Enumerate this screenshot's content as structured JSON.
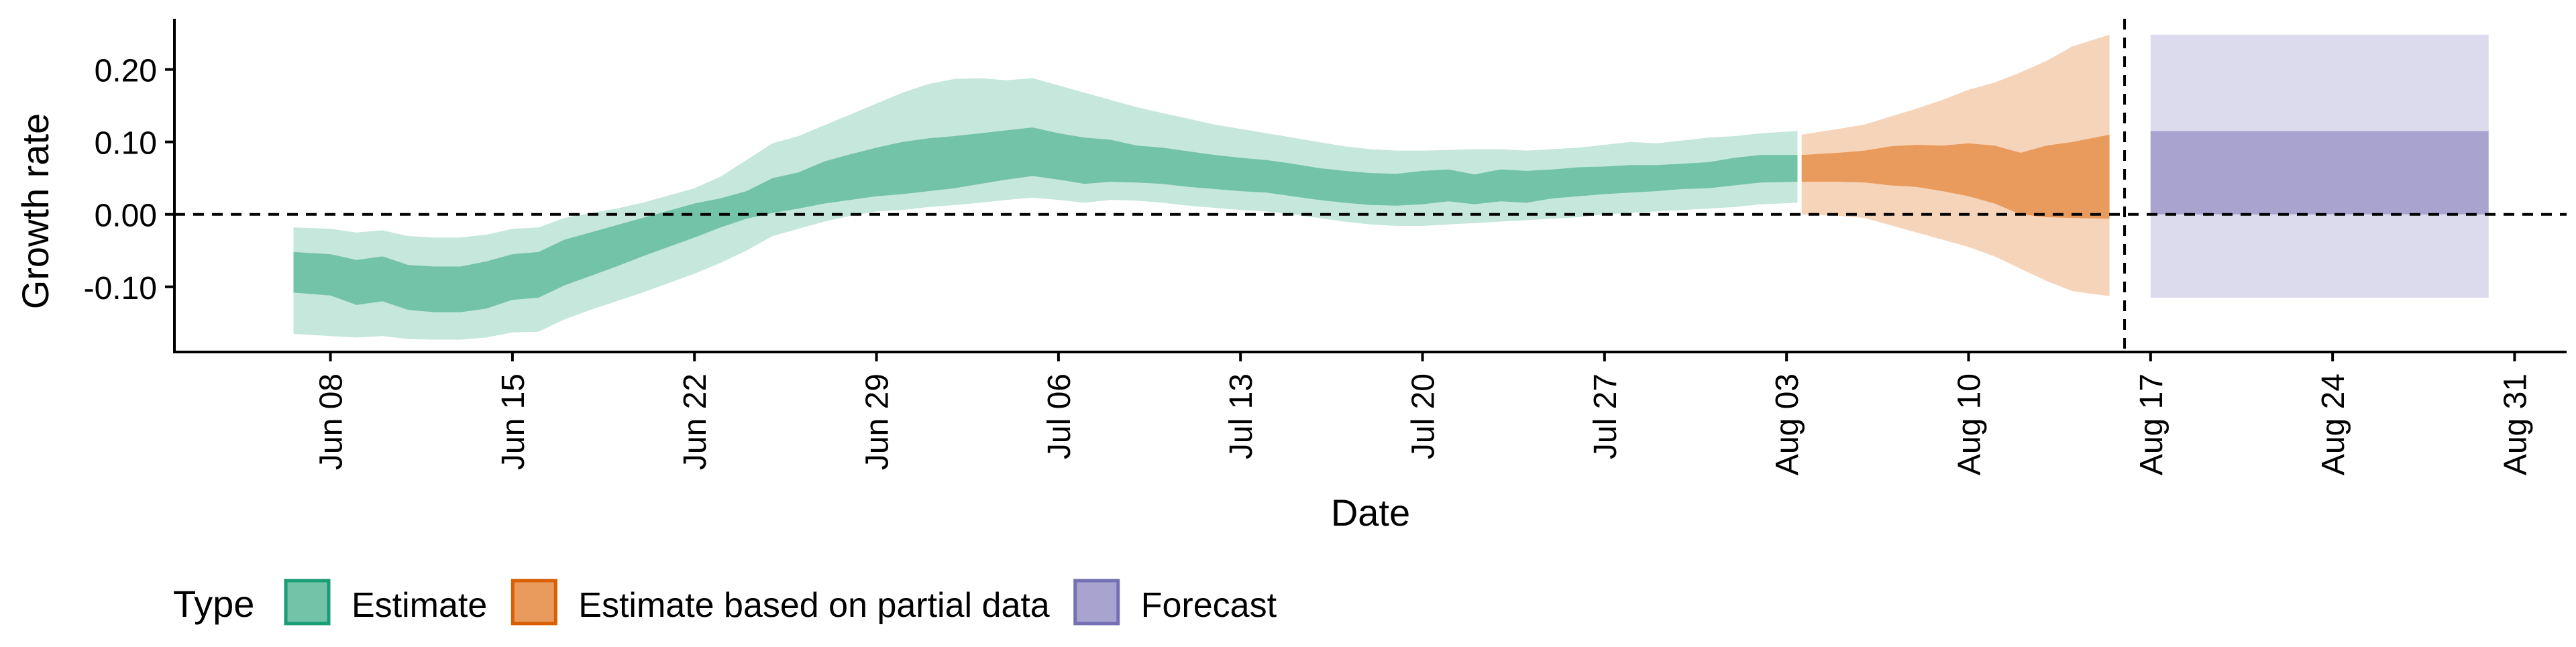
{
  "chart_data": {
    "type": "area",
    "title": "",
    "xlabel": "Date",
    "ylabel": "Growth rate",
    "x_ticks": [
      "2021-06-08",
      "2021-06-15",
      "2021-06-22",
      "2021-06-29",
      "2021-07-06",
      "2021-07-13",
      "2021-07-20",
      "2021-07-27",
      "2021-08-03",
      "2021-08-10",
      "2021-08-17",
      "2021-08-24",
      "2021-08-31"
    ],
    "x_tick_labels": [
      "Jun 08",
      "Jun 15",
      "Jun 22",
      "Jun 29",
      "Jul 06",
      "Jul 13",
      "Jul 20",
      "Jul 27",
      "Aug 03",
      "Aug 10",
      "Aug 17",
      "Aug 24",
      "Aug 31"
    ],
    "y_ticks": [
      -0.1,
      0.0,
      0.1,
      0.2
    ],
    "y_tick_labels": [
      "-0.10",
      "0.00",
      "0.10",
      "0.20"
    ],
    "xlim": [
      "2021-06-02",
      "2021-09-02"
    ],
    "ylim": [
      -0.19,
      0.27
    ],
    "grid": false,
    "reference_lines": {
      "horizontal_dashed_y": 0.0,
      "vertical_dashed_x": "2021-08-16"
    },
    "legend": {
      "title": "Type",
      "position": "bottom-left",
      "entries": [
        {
          "label": "Estimate",
          "fill": "#72c3a8",
          "stroke": "#1b9e77"
        },
        {
          "label": "Estimate based on partial data",
          "fill": "#e99b5e",
          "stroke": "#d95f02"
        },
        {
          "label": "Forecast",
          "fill": "#a9a4cf",
          "stroke": "#7570b3"
        }
      ]
    },
    "series": [
      {
        "name": "Estimate",
        "outer_fill": "#c6e7dc",
        "inner_fill": "#72c3a8",
        "points": [
          {
            "x": "2021-06-07",
            "outer_lo": -0.165,
            "inner_lo": -0.108,
            "inner_hi": -0.052,
            "outer_hi": -0.018
          },
          {
            "x": "2021-06-08",
            "outer_lo": -0.168,
            "inner_lo": -0.112,
            "inner_hi": -0.055,
            "outer_hi": -0.02
          },
          {
            "x": "2021-06-09",
            "outer_lo": -0.17,
            "inner_lo": -0.125,
            "inner_hi": -0.063,
            "outer_hi": -0.025
          },
          {
            "x": "2021-06-10",
            "outer_lo": -0.168,
            "inner_lo": -0.12,
            "inner_hi": -0.058,
            "outer_hi": -0.022
          },
          {
            "x": "2021-06-11",
            "outer_lo": -0.172,
            "inner_lo": -0.132,
            "inner_hi": -0.07,
            "outer_hi": -0.03
          },
          {
            "x": "2021-06-12",
            "outer_lo": -0.173,
            "inner_lo": -0.135,
            "inner_hi": -0.072,
            "outer_hi": -0.032
          },
          {
            "x": "2021-06-13",
            "outer_lo": -0.173,
            "inner_lo": -0.135,
            "inner_hi": -0.072,
            "outer_hi": -0.032
          },
          {
            "x": "2021-06-14",
            "outer_lo": -0.17,
            "inner_lo": -0.13,
            "inner_hi": -0.065,
            "outer_hi": -0.028
          },
          {
            "x": "2021-06-15",
            "outer_lo": -0.163,
            "inner_lo": -0.118,
            "inner_hi": -0.055,
            "outer_hi": -0.02
          },
          {
            "x": "2021-06-16",
            "outer_lo": -0.162,
            "inner_lo": -0.115,
            "inner_hi": -0.052,
            "outer_hi": -0.018
          },
          {
            "x": "2021-06-17",
            "outer_lo": -0.145,
            "inner_lo": -0.098,
            "inner_hi": -0.035,
            "outer_hi": -0.005
          },
          {
            "x": "2021-06-18",
            "outer_lo": -0.132,
            "inner_lo": -0.085,
            "inner_hi": -0.025,
            "outer_hi": 0.002
          },
          {
            "x": "2021-06-19",
            "outer_lo": -0.12,
            "inner_lo": -0.072,
            "inner_hi": -0.015,
            "outer_hi": 0.008
          },
          {
            "x": "2021-06-20",
            "outer_lo": -0.108,
            "inner_lo": -0.058,
            "inner_hi": -0.005,
            "outer_hi": 0.016
          },
          {
            "x": "2021-06-21",
            "outer_lo": -0.095,
            "inner_lo": -0.045,
            "inner_hi": 0.005,
            "outer_hi": 0.026
          },
          {
            "x": "2021-06-22",
            "outer_lo": -0.082,
            "inner_lo": -0.032,
            "inner_hi": 0.015,
            "outer_hi": 0.036
          },
          {
            "x": "2021-06-23",
            "outer_lo": -0.067,
            "inner_lo": -0.018,
            "inner_hi": 0.022,
            "outer_hi": 0.052
          },
          {
            "x": "2021-06-24",
            "outer_lo": -0.05,
            "inner_lo": -0.006,
            "inner_hi": 0.032,
            "outer_hi": 0.075
          },
          {
            "x": "2021-06-25",
            "outer_lo": -0.03,
            "inner_lo": 0.002,
            "inner_hi": 0.05,
            "outer_hi": 0.098
          },
          {
            "x": "2021-06-26",
            "outer_lo": -0.02,
            "inner_lo": 0.008,
            "inner_hi": 0.058,
            "outer_hi": 0.108
          },
          {
            "x": "2021-06-27",
            "outer_lo": -0.01,
            "inner_lo": 0.015,
            "inner_hi": 0.073,
            "outer_hi": 0.123
          },
          {
            "x": "2021-06-28",
            "outer_lo": -0.002,
            "inner_lo": 0.02,
            "inner_hi": 0.083,
            "outer_hi": 0.138
          },
          {
            "x": "2021-06-29",
            "outer_lo": 0.004,
            "inner_lo": 0.025,
            "inner_hi": 0.092,
            "outer_hi": 0.153
          },
          {
            "x": "2021-06-30",
            "outer_lo": 0.006,
            "inner_lo": 0.028,
            "inner_hi": 0.1,
            "outer_hi": 0.168
          },
          {
            "x": "2021-07-01",
            "outer_lo": 0.01,
            "inner_lo": 0.032,
            "inner_hi": 0.105,
            "outer_hi": 0.18
          },
          {
            "x": "2021-07-02",
            "outer_lo": 0.013,
            "inner_lo": 0.036,
            "inner_hi": 0.108,
            "outer_hi": 0.187
          },
          {
            "x": "2021-07-03",
            "outer_lo": 0.016,
            "inner_lo": 0.042,
            "inner_hi": 0.112,
            "outer_hi": 0.188
          },
          {
            "x": "2021-07-04",
            "outer_lo": 0.02,
            "inner_lo": 0.048,
            "inner_hi": 0.116,
            "outer_hi": 0.185
          },
          {
            "x": "2021-07-05",
            "outer_lo": 0.023,
            "inner_lo": 0.053,
            "inner_hi": 0.12,
            "outer_hi": 0.188
          },
          {
            "x": "2021-07-06",
            "outer_lo": 0.02,
            "inner_lo": 0.048,
            "inner_hi": 0.112,
            "outer_hi": 0.178
          },
          {
            "x": "2021-07-07",
            "outer_lo": 0.016,
            "inner_lo": 0.042,
            "inner_hi": 0.106,
            "outer_hi": 0.168
          },
          {
            "x": "2021-07-08",
            "outer_lo": 0.02,
            "inner_lo": 0.045,
            "inner_hi": 0.103,
            "outer_hi": 0.158
          },
          {
            "x": "2021-07-09",
            "outer_lo": 0.019,
            "inner_lo": 0.044,
            "inner_hi": 0.095,
            "outer_hi": 0.148
          },
          {
            "x": "2021-07-10",
            "outer_lo": 0.016,
            "inner_lo": 0.042,
            "inner_hi": 0.092,
            "outer_hi": 0.14
          },
          {
            "x": "2021-07-11",
            "outer_lo": 0.012,
            "inner_lo": 0.038,
            "inner_hi": 0.087,
            "outer_hi": 0.132
          },
          {
            "x": "2021-07-12",
            "outer_lo": 0.009,
            "inner_lo": 0.035,
            "inner_hi": 0.082,
            "outer_hi": 0.124
          },
          {
            "x": "2021-07-13",
            "outer_lo": 0.006,
            "inner_lo": 0.032,
            "inner_hi": 0.078,
            "outer_hi": 0.118
          },
          {
            "x": "2021-07-14",
            "outer_lo": 0.004,
            "inner_lo": 0.03,
            "inner_hi": 0.075,
            "outer_hi": 0.112
          },
          {
            "x": "2021-07-15",
            "outer_lo": 0.0,
            "inner_lo": 0.025,
            "inner_hi": 0.07,
            "outer_hi": 0.106
          },
          {
            "x": "2021-07-16",
            "outer_lo": -0.005,
            "inner_lo": 0.02,
            "inner_hi": 0.064,
            "outer_hi": 0.1
          },
          {
            "x": "2021-07-17",
            "outer_lo": -0.01,
            "inner_lo": 0.016,
            "inner_hi": 0.06,
            "outer_hi": 0.094
          },
          {
            "x": "2021-07-18",
            "outer_lo": -0.014,
            "inner_lo": 0.013,
            "inner_hi": 0.057,
            "outer_hi": 0.09
          },
          {
            "x": "2021-07-19",
            "outer_lo": -0.016,
            "inner_lo": 0.012,
            "inner_hi": 0.056,
            "outer_hi": 0.088
          },
          {
            "x": "2021-07-20",
            "outer_lo": -0.016,
            "inner_lo": 0.014,
            "inner_hi": 0.06,
            "outer_hi": 0.088
          },
          {
            "x": "2021-07-21",
            "outer_lo": -0.014,
            "inner_lo": 0.018,
            "inner_hi": 0.062,
            "outer_hi": 0.089
          },
          {
            "x": "2021-07-22",
            "outer_lo": -0.012,
            "inner_lo": 0.014,
            "inner_hi": 0.055,
            "outer_hi": 0.09
          },
          {
            "x": "2021-07-23",
            "outer_lo": -0.01,
            "inner_lo": 0.018,
            "inner_hi": 0.062,
            "outer_hi": 0.09
          },
          {
            "x": "2021-07-24",
            "outer_lo": -0.008,
            "inner_lo": 0.016,
            "inner_hi": 0.06,
            "outer_hi": 0.088
          },
          {
            "x": "2021-07-25",
            "outer_lo": -0.006,
            "inner_lo": 0.022,
            "inner_hi": 0.062,
            "outer_hi": 0.09
          },
          {
            "x": "2021-07-26",
            "outer_lo": -0.004,
            "inner_lo": 0.025,
            "inner_hi": 0.065,
            "outer_hi": 0.092
          },
          {
            "x": "2021-07-27",
            "outer_lo": 0.0,
            "inner_lo": 0.028,
            "inner_hi": 0.066,
            "outer_hi": 0.096
          },
          {
            "x": "2021-07-28",
            "outer_lo": 0.002,
            "inner_lo": 0.03,
            "inner_hi": 0.068,
            "outer_hi": 0.1
          },
          {
            "x": "2021-07-29",
            "outer_lo": 0.004,
            "inner_lo": 0.032,
            "inner_hi": 0.068,
            "outer_hi": 0.098
          },
          {
            "x": "2021-07-30",
            "outer_lo": 0.006,
            "inner_lo": 0.035,
            "inner_hi": 0.07,
            "outer_hi": 0.102
          },
          {
            "x": "2021-07-31",
            "outer_lo": 0.008,
            "inner_lo": 0.036,
            "inner_hi": 0.072,
            "outer_hi": 0.106
          },
          {
            "x": "2021-08-01",
            "outer_lo": 0.01,
            "inner_lo": 0.04,
            "inner_hi": 0.078,
            "outer_hi": 0.108
          },
          {
            "x": "2021-08-02",
            "outer_lo": 0.014,
            "inner_lo": 0.044,
            "inner_hi": 0.082,
            "outer_hi": 0.112
          },
          {
            "x": "2021-08-03",
            "outer_lo": 0.016,
            "inner_lo": 0.045,
            "inner_hi": 0.082,
            "outer_hi": 0.115
          }
        ]
      },
      {
        "name": "Estimate based on partial data",
        "outer_fill": "#f6d4ba",
        "inner_fill": "#e99b5e",
        "points": [
          {
            "x": "2021-08-04",
            "outer_lo": 0.0,
            "inner_lo": 0.045,
            "inner_hi": 0.082,
            "outer_hi": 0.11
          },
          {
            "x": "2021-08-05",
            "outer_lo": -0.002,
            "inner_lo": 0.045,
            "inner_hi": 0.085,
            "outer_hi": 0.118
          },
          {
            "x": "2021-08-06",
            "outer_lo": -0.005,
            "inner_lo": 0.044,
            "inner_hi": 0.088,
            "outer_hi": 0.124
          },
          {
            "x": "2021-08-07",
            "outer_lo": -0.015,
            "inner_lo": 0.04,
            "inner_hi": 0.094,
            "outer_hi": 0.135
          },
          {
            "x": "2021-08-08",
            "outer_lo": -0.025,
            "inner_lo": 0.038,
            "inner_hi": 0.096,
            "outer_hi": 0.146
          },
          {
            "x": "2021-08-09",
            "outer_lo": -0.035,
            "inner_lo": 0.032,
            "inner_hi": 0.095,
            "outer_hi": 0.158
          },
          {
            "x": "2021-08-10",
            "outer_lo": -0.045,
            "inner_lo": 0.025,
            "inner_hi": 0.098,
            "outer_hi": 0.172
          },
          {
            "x": "2021-08-11",
            "outer_lo": -0.058,
            "inner_lo": 0.015,
            "inner_hi": 0.095,
            "outer_hi": 0.182
          },
          {
            "x": "2021-08-12",
            "outer_lo": -0.075,
            "inner_lo": 0.0,
            "inner_hi": 0.085,
            "outer_hi": 0.196
          },
          {
            "x": "2021-08-13",
            "outer_lo": -0.092,
            "inner_lo": -0.004,
            "inner_hi": 0.095,
            "outer_hi": 0.212
          },
          {
            "x": "2021-08-14",
            "outer_lo": -0.106,
            "inner_lo": -0.005,
            "inner_hi": 0.1,
            "outer_hi": 0.232
          },
          {
            "x": "2021-08-15",
            "outer_lo": -0.113,
            "inner_lo": -0.006,
            "inner_hi": 0.11,
            "outer_hi": 0.248
          }
        ]
      },
      {
        "name": "Forecast",
        "outer_fill": "#dcdbed",
        "inner_fill": "#a9a4cf",
        "points": [
          {
            "x": "2021-08-17",
            "outer_lo": -0.115,
            "inner_lo": 0.0,
            "inner_hi": 0.115,
            "outer_hi": 0.248
          },
          {
            "x": "2021-08-30",
            "outer_lo": -0.115,
            "inner_lo": 0.0,
            "inner_hi": 0.115,
            "outer_hi": 0.248
          }
        ]
      }
    ]
  }
}
